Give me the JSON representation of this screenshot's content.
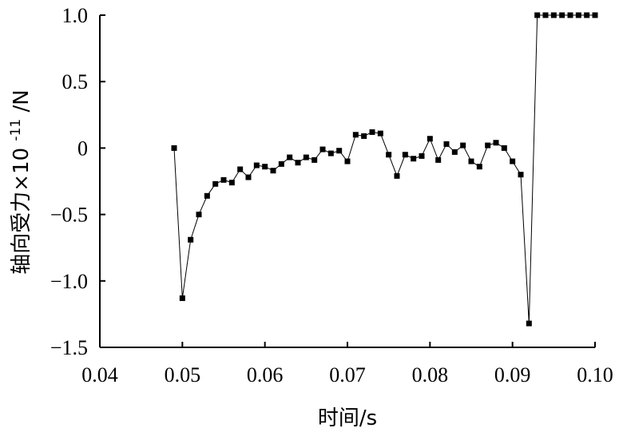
{
  "chart_data": {
    "type": "line",
    "xlabel": "时间/s",
    "ylabel": "轴向受力×10",
    "ylabel_exponent": "-11",
    "ylabel_unit": "/N",
    "xlim": [
      0.04,
      0.1
    ],
    "ylim": [
      -1.5,
      1.0
    ],
    "xticks": [
      0.04,
      0.05,
      0.06,
      0.07,
      0.08,
      0.09,
      0.1
    ],
    "xtick_labels": [
      "0.04",
      "0.05",
      "0.06",
      "0.07",
      "0.08",
      "0.09",
      "0.10"
    ],
    "yticks": [
      1.0,
      0.5,
      0,
      -0.5,
      -1.0,
      -1.5
    ],
    "ytick_labels": [
      "1.0",
      "0.5",
      "0",
      "−0.5",
      "−1.0",
      "−1.5"
    ],
    "grid": false,
    "marker": "square",
    "series": [
      {
        "points": [
          [
            0.049,
            0.0
          ],
          [
            0.05,
            -1.13
          ],
          [
            0.051,
            -0.69
          ],
          [
            0.052,
            -0.5
          ],
          [
            0.053,
            -0.36
          ],
          [
            0.054,
            -0.27
          ],
          [
            0.055,
            -0.24
          ],
          [
            0.056,
            -0.26
          ],
          [
            0.057,
            -0.16
          ],
          [
            0.058,
            -0.22
          ],
          [
            0.059,
            -0.13
          ],
          [
            0.06,
            -0.14
          ],
          [
            0.061,
            -0.17
          ],
          [
            0.062,
            -0.12
          ],
          [
            0.063,
            -0.07
          ],
          [
            0.064,
            -0.11
          ],
          [
            0.065,
            -0.07
          ],
          [
            0.066,
            -0.09
          ],
          [
            0.067,
            -0.01
          ],
          [
            0.068,
            -0.04
          ],
          [
            0.069,
            -0.02
          ],
          [
            0.07,
            -0.1
          ],
          [
            0.071,
            0.1
          ],
          [
            0.072,
            0.09
          ],
          [
            0.073,
            0.12
          ],
          [
            0.074,
            0.11
          ],
          [
            0.075,
            -0.05
          ],
          [
            0.076,
            -0.21
          ],
          [
            0.077,
            -0.05
          ],
          [
            0.078,
            -0.08
          ],
          [
            0.079,
            -0.06
          ],
          [
            0.08,
            0.07
          ],
          [
            0.081,
            -0.09
          ],
          [
            0.082,
            0.03
          ],
          [
            0.083,
            -0.03
          ],
          [
            0.084,
            0.02
          ],
          [
            0.085,
            -0.1
          ],
          [
            0.086,
            -0.14
          ],
          [
            0.087,
            0.02
          ],
          [
            0.088,
            0.04
          ],
          [
            0.089,
            0.0
          ],
          [
            0.09,
            -0.1
          ],
          [
            0.091,
            -0.2
          ],
          [
            0.092,
            -1.32
          ],
          [
            0.093,
            1.0
          ],
          [
            0.094,
            1.0
          ],
          [
            0.095,
            1.0
          ],
          [
            0.096,
            1.0
          ],
          [
            0.097,
            1.0
          ],
          [
            0.098,
            1.0
          ],
          [
            0.099,
            1.0
          ],
          [
            0.1,
            1.0
          ]
        ]
      }
    ]
  }
}
